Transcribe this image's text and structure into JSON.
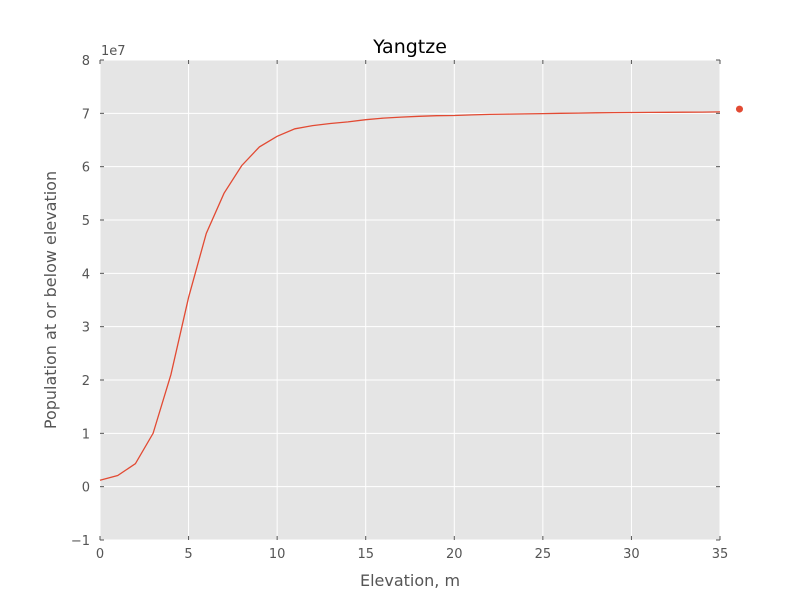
{
  "chart_data": {
    "type": "line",
    "title": "Yangtze",
    "xlabel": "Elevation, m",
    "ylabel": "Population at or below elevation",
    "offset_text": "1e7",
    "xlim": [
      0,
      35
    ],
    "ylim": [
      -1,
      8
    ],
    "xticks": [
      0,
      5,
      10,
      15,
      20,
      25,
      30,
      35
    ],
    "yticks": [
      -1,
      0,
      1,
      2,
      3,
      4,
      5,
      6,
      7,
      8
    ],
    "grid": true,
    "series": [
      {
        "color": "#e24a33",
        "x": [
          0,
          1,
          2,
          3,
          4,
          5,
          6,
          7,
          8,
          9,
          10,
          11,
          12,
          13,
          14,
          15,
          16,
          17,
          18,
          19,
          20,
          21,
          22,
          23,
          24,
          25,
          26,
          27,
          28,
          29,
          30,
          31,
          32,
          33,
          34,
          35
        ],
        "y": [
          0.12,
          0.21,
          0.43,
          1.0,
          2.1,
          3.55,
          4.75,
          5.5,
          6.02,
          6.37,
          6.57,
          6.71,
          6.77,
          6.81,
          6.84,
          6.88,
          6.91,
          6.93,
          6.945,
          6.955,
          6.96,
          6.97,
          6.98,
          6.985,
          6.99,
          6.995,
          7.0,
          7.005,
          7.01,
          7.013,
          7.016,
          7.018,
          7.02,
          7.022,
          7.024,
          7.026
        ]
      }
    ],
    "outside_marker": {
      "x": 36.1,
      "y": 7.08,
      "color": "#e24a33"
    }
  }
}
